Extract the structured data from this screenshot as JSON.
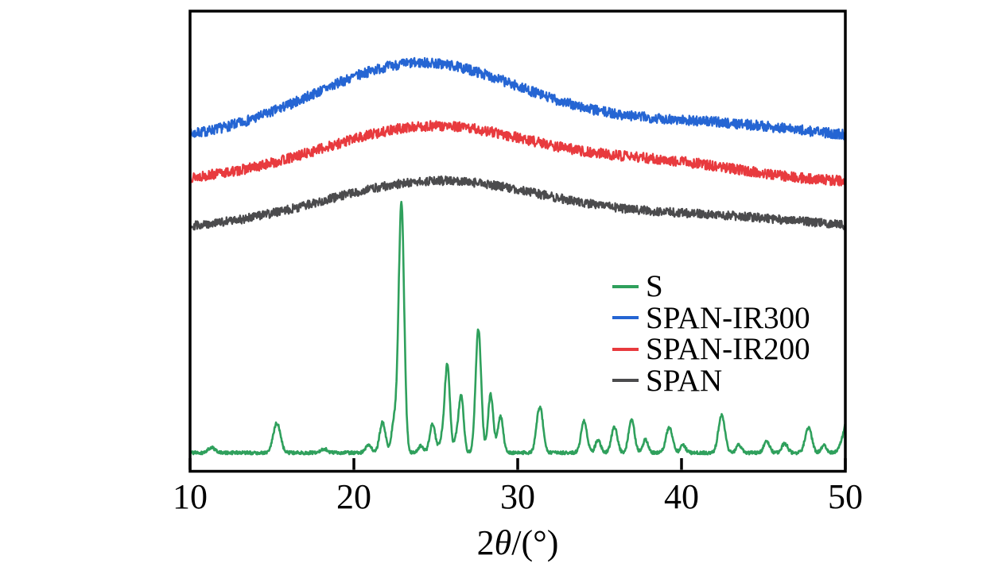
{
  "figure": {
    "background": "#ffffff",
    "frame_color": "#000000",
    "kind": "XRD pattern comparison plot"
  },
  "axes": {
    "xlabel": "2θ/(°)",
    "xlabel_parts": {
      "num": "2",
      "theta": "θ",
      "rest": "/(°)"
    },
    "xticks": [
      "10",
      "20",
      "30",
      "40",
      "50"
    ],
    "yticks": [],
    "ylabel": ""
  },
  "legend": {
    "position": "center-right",
    "items": [
      {
        "label": "S",
        "color": "#2fa05c"
      },
      {
        "label": "SPAN-IR300",
        "color": "#2565d3"
      },
      {
        "label": "SPAN-IR200",
        "color": "#e83a3e"
      },
      {
        "label": "SPAN",
        "color": "#4b4b4d"
      }
    ]
  },
  "chart_data": {
    "type": "line",
    "title": "",
    "xlabel": "2θ/(°)",
    "ylabel": "",
    "xlim": [
      10,
      50
    ],
    "ylim": [
      0,
      1
    ],
    "xticks": [
      10,
      20,
      30,
      40,
      50
    ],
    "grid": false,
    "legend_position": "center-right",
    "y_units": "intensity (a.u., normalized to plot height, traces vertically offset)",
    "hump_format": [
      "center_two_theta_deg",
      "height",
      "sigma_deg"
    ],
    "peak_format": [
      "two_theta_deg",
      "height_above_baseline",
      "sigma_deg"
    ],
    "series": [
      {
        "name": "SPAN-IR300",
        "color": "#2565d3",
        "style": "amorphous-noisy",
        "base": 0.715,
        "noise": 0.011,
        "seed": 7,
        "stroke": 2.3,
        "humps": [
          [
            24.0,
            0.17,
            6.5
          ],
          [
            41.0,
            0.04,
            6.5
          ]
        ]
      },
      {
        "name": "SPAN-IR200",
        "color": "#e83a3e",
        "style": "amorphous-noisy",
        "base": 0.627,
        "noise": 0.011,
        "seed": 13,
        "stroke": 2.3,
        "humps": [
          [
            24.9,
            0.122,
            6.8
          ],
          [
            39.5,
            0.035,
            4.8
          ]
        ]
      },
      {
        "name": "SPAN",
        "color": "#4b4b4d",
        "style": "amorphous-noisy",
        "base": 0.523,
        "noise": 0.0095,
        "seed": 29,
        "stroke": 2.3,
        "humps": [
          [
            25.2,
            0.107,
            7.0
          ],
          [
            42.0,
            0.028,
            6.0
          ]
        ]
      },
      {
        "name": "S",
        "color": "#2fa05c",
        "style": "crystalline",
        "base": 0.041,
        "noise": 0.0035,
        "seed": 41,
        "stroke": 2.6,
        "peaks": [
          [
            11.3,
            0.012,
            0.2
          ],
          [
            15.3,
            0.064,
            0.22
          ],
          [
            18.2,
            0.008,
            0.2
          ],
          [
            20.9,
            0.016,
            0.18
          ],
          [
            21.75,
            0.066,
            0.18
          ],
          [
            22.45,
            0.065,
            0.16
          ],
          [
            22.9,
            0.54,
            0.17
          ],
          [
            24.1,
            0.016,
            0.15
          ],
          [
            24.8,
            0.063,
            0.17
          ],
          [
            25.35,
            0.025,
            0.14
          ],
          [
            25.7,
            0.19,
            0.16
          ],
          [
            26.25,
            0.028,
            0.13
          ],
          [
            26.55,
            0.124,
            0.15
          ],
          [
            27.6,
            0.267,
            0.17
          ],
          [
            28.35,
            0.126,
            0.16
          ],
          [
            28.95,
            0.08,
            0.16
          ],
          [
            31.35,
            0.1,
            0.2
          ],
          [
            34.05,
            0.068,
            0.18
          ],
          [
            34.9,
            0.028,
            0.16
          ],
          [
            35.9,
            0.056,
            0.18
          ],
          [
            36.95,
            0.072,
            0.18
          ],
          [
            37.8,
            0.028,
            0.16
          ],
          [
            39.25,
            0.055,
            0.2
          ],
          [
            40.1,
            0.016,
            0.16
          ],
          [
            42.45,
            0.082,
            0.2
          ],
          [
            43.5,
            0.018,
            0.16
          ],
          [
            45.2,
            0.024,
            0.18
          ],
          [
            46.3,
            0.02,
            0.18
          ],
          [
            47.75,
            0.055,
            0.2
          ],
          [
            48.7,
            0.016,
            0.16
          ],
          [
            50.3,
            0.09,
            0.35
          ]
        ]
      }
    ]
  }
}
